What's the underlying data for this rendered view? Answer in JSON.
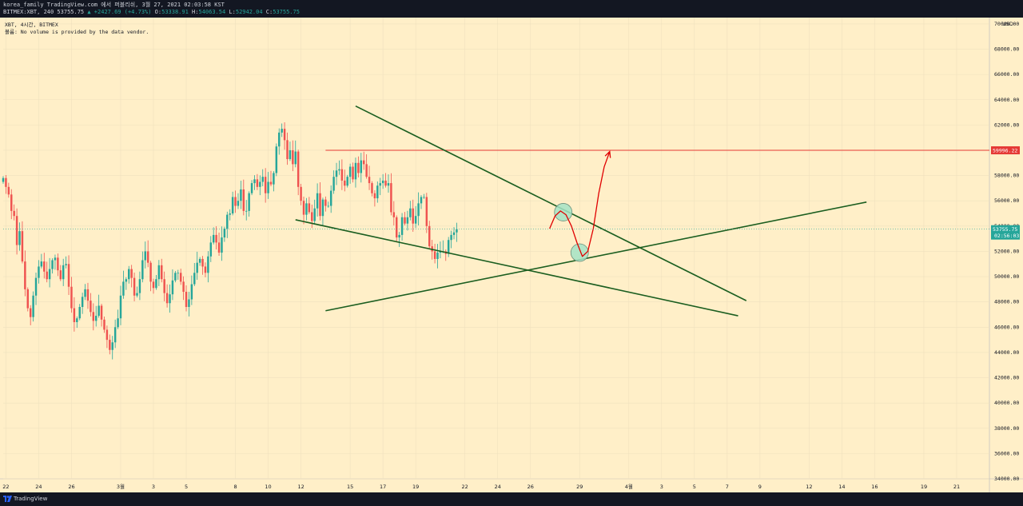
{
  "header": {
    "line1": "korea_family TradingView.com 에서 퍼블리쉬, 3월 27, 2021 02:03:58 KST",
    "symbol_info": "BITMEX:XBT, 240 53755.75",
    "change": "▲ +2427.69 (+4.73%)",
    "o_label": "O:",
    "o_value": "53338.91",
    "h_label": "H:",
    "h_value": "54063.54",
    "l_label": "L:",
    "l_value": "52942.04",
    "c_label": "C:",
    "c_value": "53755.75"
  },
  "legend": {
    "title": "XBT, 4시간, BITMEX",
    "note": "볼륨: No volume is provided by the data vendor."
  },
  "footer": {
    "brand": "TradingView"
  },
  "colors": {
    "up": "#26a69a",
    "down": "#ef5350",
    "background": "#ffefc8",
    "trend": "#1b5e20",
    "level": "#e53935",
    "highlight": "#a5e3c6"
  },
  "chart_data": {
    "type": "candlestick",
    "symbol": "XBT",
    "interval": "4시간",
    "exchange": "BITMEX",
    "currency": "USD",
    "ylim": [
      34000,
      70500
    ],
    "y_ticks": [
      34000,
      36000,
      38000,
      40000,
      42000,
      44000,
      46000,
      48000,
      50000,
      52000,
      54000,
      56000,
      58000,
      60000,
      62000,
      64000,
      66000,
      68000,
      70000
    ],
    "x_range": [
      "2021-02-21T20:00",
      "2021-04-23T00:00"
    ],
    "x_ticks": [
      {
        "date": "2021-02-22",
        "label": "22"
      },
      {
        "date": "2021-02-24",
        "label": "24"
      },
      {
        "date": "2021-02-26",
        "label": "26"
      },
      {
        "date": "2021-03-01",
        "label": "3월"
      },
      {
        "date": "2021-03-03",
        "label": "3"
      },
      {
        "date": "2021-03-05",
        "label": "5"
      },
      {
        "date": "2021-03-08",
        "label": "8"
      },
      {
        "date": "2021-03-10",
        "label": "10"
      },
      {
        "date": "2021-03-12",
        "label": "12"
      },
      {
        "date": "2021-03-15",
        "label": "15"
      },
      {
        "date": "2021-03-17",
        "label": "17"
      },
      {
        "date": "2021-03-19",
        "label": "19"
      },
      {
        "date": "2021-03-22",
        "label": "22"
      },
      {
        "date": "2021-03-24",
        "label": "24"
      },
      {
        "date": "2021-03-26",
        "label": "26"
      },
      {
        "date": "2021-03-29",
        "label": "29"
      },
      {
        "date": "2021-04-01",
        "label": "4월"
      },
      {
        "date": "2021-04-03",
        "label": "3"
      },
      {
        "date": "2021-04-05",
        "label": "5"
      },
      {
        "date": "2021-04-07",
        "label": "7"
      },
      {
        "date": "2021-04-09",
        "label": "9"
      },
      {
        "date": "2021-04-12",
        "label": "12"
      },
      {
        "date": "2021-04-14",
        "label": "14"
      },
      {
        "date": "2021-04-16",
        "label": "16"
      },
      {
        "date": "2021-04-19",
        "label": "19"
      },
      {
        "date": "2021-04-21",
        "label": "21"
      }
    ],
    "candles_start": "2021-02-21T20:00",
    "candle_hours": 4,
    "closes": [
      57800,
      57100,
      56500,
      55200,
      54800,
      52500,
      53600,
      51200,
      49000,
      47500,
      46800,
      48500,
      49900,
      50800,
      51200,
      50400,
      49800,
      50600,
      51300,
      51500,
      50500,
      49800,
      50900,
      51000,
      49200,
      47500,
      46400,
      46700,
      47600,
      48400,
      49000,
      48100,
      47200,
      46500,
      46900,
      47700,
      46600,
      45800,
      45000,
      44200,
      44800,
      46000,
      46700,
      48500,
      49600,
      49800,
      50600,
      49900,
      48500,
      48700,
      49800,
      51300,
      52000,
      51100,
      49600,
      49100,
      49800,
      50900,
      49800,
      48700,
      47900,
      48600,
      49700,
      50300,
      50300,
      49600,
      48800,
      47600,
      48200,
      49400,
      50300,
      51100,
      51400,
      50800,
      50300,
      51600,
      52700,
      53300,
      52700,
      51900,
      53100,
      53800,
      54900,
      55000,
      56300,
      55600,
      56000,
      56900,
      55200,
      55200,
      56600,
      57400,
      57700,
      57100,
      57500,
      57900,
      56600,
      57500,
      57300,
      58200,
      60300,
      61400,
      61700,
      60800,
      59300,
      60000,
      58900,
      59900,
      57100,
      56000,
      54900,
      55800,
      55100,
      54400,
      55400,
      56600,
      54800,
      56100,
      55600,
      55600,
      56800,
      57900,
      58400,
      58500,
      57600,
      57200,
      57900,
      58700,
      57700,
      59000,
      58200,
      59200,
      58900,
      57900,
      57400,
      56600,
      56200,
      57200,
      57400,
      57600,
      57200,
      57400,
      55100,
      54700,
      53100,
      53300,
      54700,
      54200,
      54700,
      55400,
      54200,
      54800,
      55800,
      56300,
      56300,
      54000,
      52400,
      52000,
      51400,
      51900,
      52000,
      52000,
      51800,
      52900,
      53300,
      53500,
      53756
    ],
    "horizontal_line": {
      "value": 59996.22,
      "label": "59996.22",
      "from": "2021-03-13T12:00"
    },
    "last_price": {
      "value": 53755.75,
      "label": "53755.75",
      "countdown": "02:56:03"
    },
    "trendlines": [
      {
        "from": {
          "date": "2021-03-15T08:00",
          "value": 63500
        },
        "to": {
          "date": "2021-04-08T04:00",
          "value": 48100
        }
      },
      {
        "from": {
          "date": "2021-03-11T16:00",
          "value": 54500
        },
        "to": {
          "date": "2021-04-07T16:00",
          "value": 46900
        }
      },
      {
        "from": {
          "date": "2021-03-13T12:00",
          "value": 47300
        },
        "to": {
          "date": "2021-04-15T12:00",
          "value": 55900
        }
      }
    ],
    "projection": [
      {
        "date": "2021-03-27T04:00",
        "value": 53800
      },
      {
        "date": "2021-03-27T12:00",
        "value": 54800
      },
      {
        "date": "2021-03-27T20:00",
        "value": 55200
      },
      {
        "date": "2021-03-28T04:00",
        "value": 54900
      },
      {
        "date": "2021-03-28T12:00",
        "value": 54000
      },
      {
        "date": "2021-03-28T20:00",
        "value": 52700
      },
      {
        "date": "2021-03-29T04:00",
        "value": 51600
      },
      {
        "date": "2021-03-29T12:00",
        "value": 52000
      },
      {
        "date": "2021-03-29T20:00",
        "value": 53800
      },
      {
        "date": "2021-03-30T04:00",
        "value": 56600
      },
      {
        "date": "2021-03-30T12:00",
        "value": 58700
      },
      {
        "date": "2021-03-30T20:00",
        "value": 59900
      }
    ],
    "highlight_points": [
      {
        "date": "2021-03-28T00:00",
        "value": 55100
      },
      {
        "date": "2021-03-29T00:00",
        "value": 51900
      }
    ]
  }
}
